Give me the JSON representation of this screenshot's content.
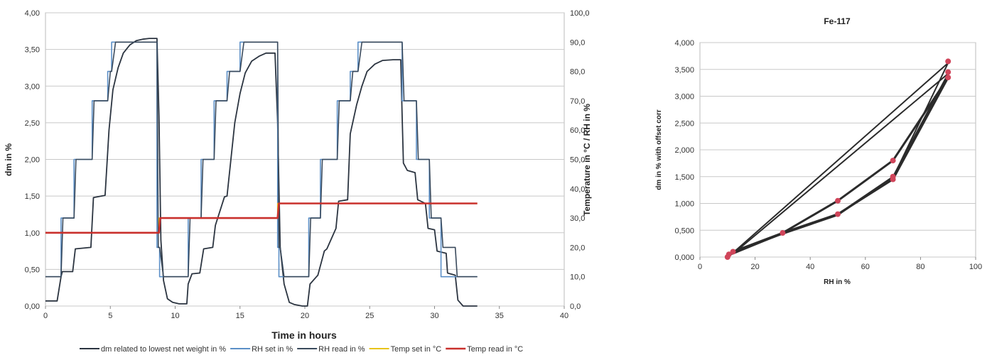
{
  "chart_data": [
    {
      "type": "line",
      "title": "",
      "xlabel": "Time in hours",
      "ylabel": "dm in %",
      "y2label": "Temperature in °C / RH in %",
      "xlim": [
        0,
        40
      ],
      "ylim": [
        0,
        4
      ],
      "y2lim": [
        0,
        100
      ],
      "x_ticks": [
        "0",
        "5",
        "10",
        "15",
        "20",
        "25",
        "30",
        "35",
        "40"
      ],
      "y_ticks": [
        "0,00",
        "0,50",
        "1,00",
        "1,50",
        "2,00",
        "2,50",
        "3,00",
        "3,50",
        "4,00"
      ],
      "y2_ticks": [
        "0,0",
        "10,0",
        "20,0",
        "30,0",
        "40,0",
        "50,0",
        "60,0",
        "70,0",
        "80,0",
        "90,0",
        "100,0"
      ],
      "grid": true,
      "legend_position": "bottom",
      "series": [
        {
          "name": "dm  related to lowest net weight in   %",
          "axis": "left",
          "color": "#2b3440",
          "x": [
            0,
            0.9,
            1.2,
            1.3,
            2.1,
            2.3,
            3.5,
            3.7,
            4.6,
            4.9,
            5.2,
            5.6,
            6.0,
            6.5,
            7.0,
            7.5,
            8.0,
            8.6,
            8.75,
            8.9,
            9.1,
            9.4,
            9.8,
            10.3,
            10.9,
            11.0,
            11.3,
            11.9,
            12.2,
            12.9,
            13.1,
            13.8,
            14.0,
            14.6,
            15.0,
            15.4,
            15.9,
            16.5,
            17.0,
            17.7,
            17.9,
            18.1,
            18.4,
            18.8,
            19.2,
            19.8,
            20.2,
            20.4,
            20.9,
            21.0,
            21.5,
            21.7,
            22.4,
            22.6,
            23.3,
            23.5,
            24.0,
            24.4,
            24.8,
            25.4,
            26.0,
            26.8,
            27.4,
            27.5,
            27.6,
            27.9,
            28.5,
            28.7,
            29.3,
            29.5,
            30.0,
            30.2,
            30.9,
            31.0,
            31.6,
            31.8,
            32.2,
            33.3
          ],
          "values": [
            0.07,
            0.07,
            0.4,
            0.47,
            0.47,
            0.78,
            0.8,
            1.48,
            1.51,
            2.4,
            2.95,
            3.25,
            3.45,
            3.56,
            3.62,
            3.64,
            3.65,
            3.65,
            2.6,
            0.9,
            0.35,
            0.1,
            0.05,
            0.03,
            0.03,
            0.3,
            0.44,
            0.45,
            0.78,
            0.8,
            1.1,
            1.49,
            1.5,
            2.5,
            2.9,
            3.18,
            3.34,
            3.41,
            3.45,
            3.45,
            2.5,
            0.8,
            0.3,
            0.05,
            0.02,
            0.0,
            0.0,
            0.3,
            0.4,
            0.42,
            0.75,
            0.78,
            1.06,
            1.43,
            1.45,
            2.35,
            2.75,
            3.0,
            3.2,
            3.3,
            3.35,
            3.36,
            3.36,
            2.6,
            1.95,
            1.85,
            1.82,
            1.45,
            1.4,
            1.06,
            1.04,
            0.75,
            0.72,
            0.45,
            0.42,
            0.08,
            0.0,
            0.0
          ]
        },
        {
          "name": "RH set in %",
          "axis": "right",
          "color": "#5b8fc7",
          "x": [
            0,
            1.2,
            1.2,
            2.2,
            2.2,
            3.6,
            3.6,
            4.8,
            4.8,
            5.1,
            5.1,
            8.6,
            8.6,
            8.8,
            8.8,
            11.0,
            11.0,
            12.0,
            12.0,
            13.0,
            13.0,
            14.0,
            14.0,
            15.0,
            15.0,
            17.9,
            17.9,
            18.0,
            18.0,
            20.3,
            20.3,
            21.2,
            21.2,
            22.5,
            22.5,
            23.5,
            23.5,
            24.1,
            24.1,
            27.5,
            27.5,
            28.6,
            28.6,
            29.6,
            29.6,
            30.5,
            30.5,
            31.6,
            31.6,
            32.3,
            32.3,
            33.3
          ],
          "values": [
            10,
            10,
            30,
            30,
            50,
            50,
            70,
            70,
            80,
            80,
            90,
            90,
            20,
            20,
            10,
            10,
            30,
            30,
            50,
            50,
            70,
            70,
            80,
            80,
            90,
            90,
            20,
            20,
            10,
            10,
            30,
            30,
            50,
            50,
            70,
            70,
            80,
            80,
            90,
            90,
            70,
            70,
            50,
            50,
            30,
            30,
            10,
            10,
            10,
            10,
            10,
            10
          ]
        },
        {
          "name": "RH read in %",
          "axis": "right",
          "color": "#3a4a5c",
          "x": [
            0,
            1.2,
            1.35,
            2.2,
            2.35,
            3.6,
            3.75,
            4.8,
            5.0,
            5.1,
            5.4,
            8.6,
            8.7,
            8.8,
            9.1,
            11.0,
            11.15,
            12.0,
            12.15,
            13.0,
            13.15,
            14.0,
            14.2,
            15.0,
            15.3,
            17.9,
            18.0,
            18.1,
            18.4,
            20.3,
            20.45,
            21.2,
            21.35,
            22.5,
            22.65,
            23.5,
            23.7,
            24.1,
            24.4,
            27.5,
            27.65,
            28.6,
            28.75,
            29.6,
            29.75,
            30.5,
            30.65,
            31.6,
            31.75,
            32.3,
            32.45,
            33.3
          ],
          "values": [
            10,
            10,
            30,
            30,
            50,
            50,
            70,
            70,
            80,
            80,
            90,
            90,
            20,
            20,
            10,
            10,
            30,
            30,
            50,
            50,
            70,
            70,
            80,
            80,
            90,
            90,
            20,
            20,
            10,
            10,
            30,
            30,
            50,
            50,
            70,
            70,
            80,
            80,
            90,
            90,
            70,
            70,
            50,
            50,
            30,
            30,
            20,
            20,
            10,
            10,
            10,
            10
          ]
        },
        {
          "name": "Temp set in °C",
          "axis": "right",
          "color": "#e8c31a",
          "x": [
            0,
            8.75,
            8.75,
            17.9,
            17.9,
            33.3
          ],
          "values": [
            25,
            25,
            30,
            30,
            35,
            35
          ]
        },
        {
          "name": "Temp read in °C",
          "axis": "right",
          "color": "#c9302c",
          "x": [
            0,
            8.75,
            8.85,
            17.9,
            18.0,
            33.3
          ],
          "values": [
            25,
            25,
            30,
            30,
            35,
            35
          ]
        }
      ]
    },
    {
      "type": "scatter",
      "title": "Fe-117",
      "xlabel": "RH in %",
      "ylabel": "dm in % with offset corr",
      "xlim": [
        0,
        100
      ],
      "ylim": [
        0,
        4
      ],
      "x_ticks": [
        "0",
        "20",
        "40",
        "60",
        "80",
        "100"
      ],
      "y_ticks": [
        "0,000",
        "0,500",
        "1,000",
        "1,500",
        "2,000",
        "2,500",
        "3,000",
        "3,500",
        "4,000"
      ],
      "grid": true,
      "line_color": "#2b2b2b",
      "marker_color": "#d0455a",
      "cycles": [
        {
          "x": [
            10,
            12,
            30,
            50,
            70,
            90,
            70,
            50,
            30,
            12,
            10
          ],
          "values": [
            0.0,
            0.1,
            0.45,
            0.8,
            1.45,
            3.35,
            1.8,
            1.05,
            0.45,
            0.1,
            0.0
          ]
        },
        {
          "x": [
            10,
            12,
            30,
            50,
            70,
            90,
            12,
            10
          ],
          "values": [
            0.02,
            0.08,
            0.43,
            0.78,
            1.48,
            3.62,
            0.08,
            0.02
          ]
        },
        {
          "x": [
            10,
            12,
            30,
            50,
            70,
            90,
            12,
            10
          ],
          "values": [
            0.04,
            0.06,
            0.44,
            0.8,
            1.5,
            3.42,
            0.06,
            0.04
          ]
        }
      ],
      "points_x": [
        10,
        10.5,
        12,
        30,
        50,
        50,
        70,
        70,
        70,
        90,
        90,
        90
      ],
      "points_y": [
        0.0,
        0.05,
        0.1,
        0.45,
        0.8,
        1.05,
        1.45,
        1.5,
        1.8,
        3.35,
        3.45,
        3.65
      ]
    }
  ]
}
